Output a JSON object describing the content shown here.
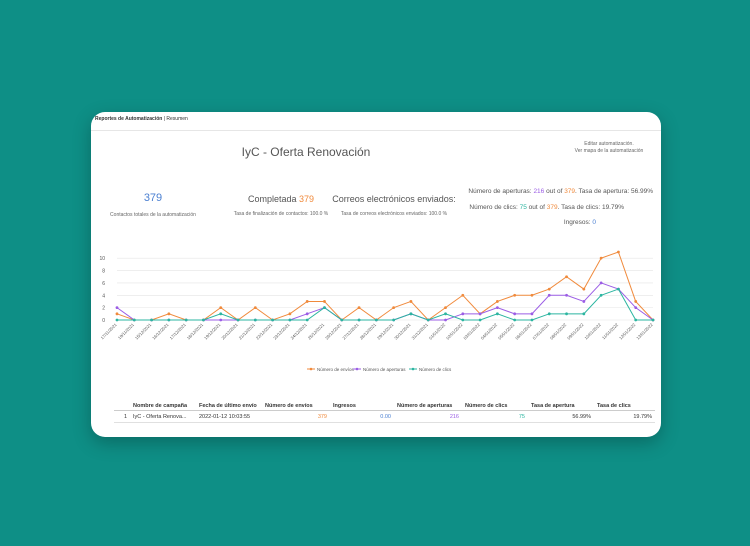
{
  "breadcrumb": {
    "section": "Reportes de Automatización",
    "separator": " | ",
    "current": "Resumen"
  },
  "page_title": "IyC - Oferta Renovación",
  "edit_links": {
    "edit": "Editar automatización.",
    "map": "Ver mapa de la automatización"
  },
  "contacts": {
    "value": "379",
    "label": "Contactos totales de la automatización"
  },
  "completed": {
    "label": "Completada",
    "value": "379",
    "rate_label": "Tasa de finalización de contactos:",
    "rate": "100.0 %"
  },
  "emails": {
    "label": "Correos electrónicos enviados:",
    "rate_label": "Tasa de correos electrónicos enviados:",
    "rate": "100.0 %"
  },
  "opens": {
    "prefix": "Número de aperturas:",
    "value": "216",
    "out_of": "out of",
    "total": "379",
    "rate_label": "Tasa de apertura:",
    "rate": "56.99%"
  },
  "clicks": {
    "prefix": "Número de clics:",
    "value": "75",
    "out_of": "out of",
    "total": "379",
    "rate_label": "Tasa de clics:",
    "rate": "19.79%"
  },
  "income": {
    "label": "Ingresos:",
    "value": "0"
  },
  "colors": {
    "orange": "#f08a3c",
    "purple": "#9b5de5",
    "teal": "#2bb5a0"
  },
  "chart_data": {
    "type": "line",
    "x": [
      "17/11/2021",
      "19/11/2021",
      "15/12/2021",
      "16/12/2021",
      "17/12/2021",
      "18/12/2021",
      "19/12/2021",
      "20/12/2021",
      "21/12/2021",
      "22/12/2021",
      "23/12/2021",
      "24/12/2021",
      "25/12/2021",
      "26/12/2021",
      "27/12/2021",
      "28/12/2021",
      "29/12/2021",
      "30/12/2021",
      "31/12/2021",
      "01/01/2022",
      "02/01/2022",
      "03/01/2022",
      "04/01/2022",
      "05/01/2022",
      "06/01/2022",
      "07/01/2022",
      "08/01/2022",
      "09/01/2022",
      "10/01/2022",
      "11/01/2022",
      "12/01/2022",
      "13/01/2022"
    ],
    "series": [
      {
        "name": "Número de envíos",
        "color": "#f08a3c",
        "values": [
          1,
          0,
          0,
          1,
          0,
          0,
          2,
          0,
          2,
          0,
          1,
          3,
          3,
          0,
          2,
          0,
          2,
          3,
          0,
          2,
          4,
          1,
          3,
          4,
          4,
          5,
          7,
          5,
          10,
          11,
          3,
          0
        ]
      },
      {
        "name": "Número de aperturas",
        "color": "#9b5de5",
        "values": [
          2,
          0,
          0,
          0,
          0,
          0,
          0,
          0,
          0,
          0,
          0,
          1,
          2,
          0,
          0,
          0,
          0,
          1,
          0,
          0,
          1,
          1,
          2,
          1,
          1,
          4,
          4,
          3,
          6,
          5,
          2,
          0
        ]
      },
      {
        "name": "Número de clics",
        "color": "#2bb5a0",
        "values": [
          0,
          0,
          0,
          0,
          0,
          0,
          1,
          0,
          0,
          0,
          0,
          0,
          2,
          0,
          0,
          0,
          0,
          1,
          0,
          1,
          0,
          0,
          1,
          0,
          0,
          1,
          1,
          1,
          4,
          5,
          0,
          0
        ]
      }
    ],
    "ylim": [
      0,
      11
    ],
    "yticks": [
      0,
      2,
      4,
      6,
      8,
      10
    ],
    "legend": "bottom",
    "grid": true
  },
  "table": {
    "columns": [
      "Nombre de campaña",
      "Fecha de último envío",
      "Número de envíos",
      "Ingresos",
      "Número de aperturas",
      "Número de clics",
      "Tasa de apertura",
      "Tasa de clics"
    ],
    "rows": [
      {
        "index": "1",
        "name": "IyC - Oferta Renova...",
        "date": "2022-01-12 10:03:55",
        "sends": "379",
        "income": "0.00",
        "opens": "216",
        "clicks": "75",
        "open_rate": "56.99%",
        "click_rate": "19.79%"
      }
    ]
  }
}
